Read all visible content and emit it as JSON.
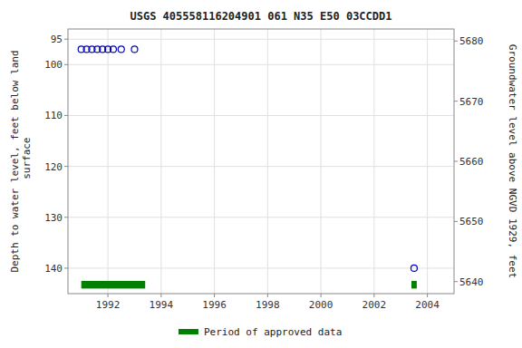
{
  "chart_data": {
    "type": "scatter",
    "title": "USGS 405558116204901 061  N35 E50 03CCDD1",
    "ylabel": "Depth to water level, feet below land\n surface",
    "y2label": "Groundwater level above NGVD 1929, feet",
    "xlim": [
      1990.5,
      2005.0
    ],
    "xticks": [
      1992,
      1994,
      1996,
      1998,
      2000,
      2002,
      2004
    ],
    "ylim": [
      145,
      93
    ],
    "yticks": [
      95,
      100,
      110,
      120,
      130,
      140
    ],
    "y2lim": [
      5638,
      5682
    ],
    "y2ticks": [
      5640,
      5650,
      5660,
      5670,
      5680
    ],
    "grid": true,
    "legend": "bottom",
    "series": [
      {
        "type": "scatter",
        "color": "#0000cc",
        "marker": "open-circle",
        "x": [
          1991.0,
          1991.2,
          1991.4,
          1991.6,
          1991.8,
          1992.0,
          1992.2,
          1992.5,
          1993.0
        ],
        "values": [
          97.0,
          97.0,
          97.0,
          97.0,
          97.0,
          97.0,
          97.0,
          97.0,
          97.0
        ]
      },
      {
        "type": "scatter",
        "color": "#0000cc",
        "marker": "open-circle",
        "x": [
          2003.5
        ],
        "values": [
          140.0
        ]
      },
      {
        "type": "range_bar",
        "name": "Period of approved data",
        "color": "#008000",
        "x_start": [
          1991.0,
          2003.4
        ],
        "x_end": [
          1993.4,
          2003.6
        ],
        "values": [
          142.5,
          142.5
        ],
        "height": [
          1.5,
          1.5
        ]
      }
    ]
  }
}
